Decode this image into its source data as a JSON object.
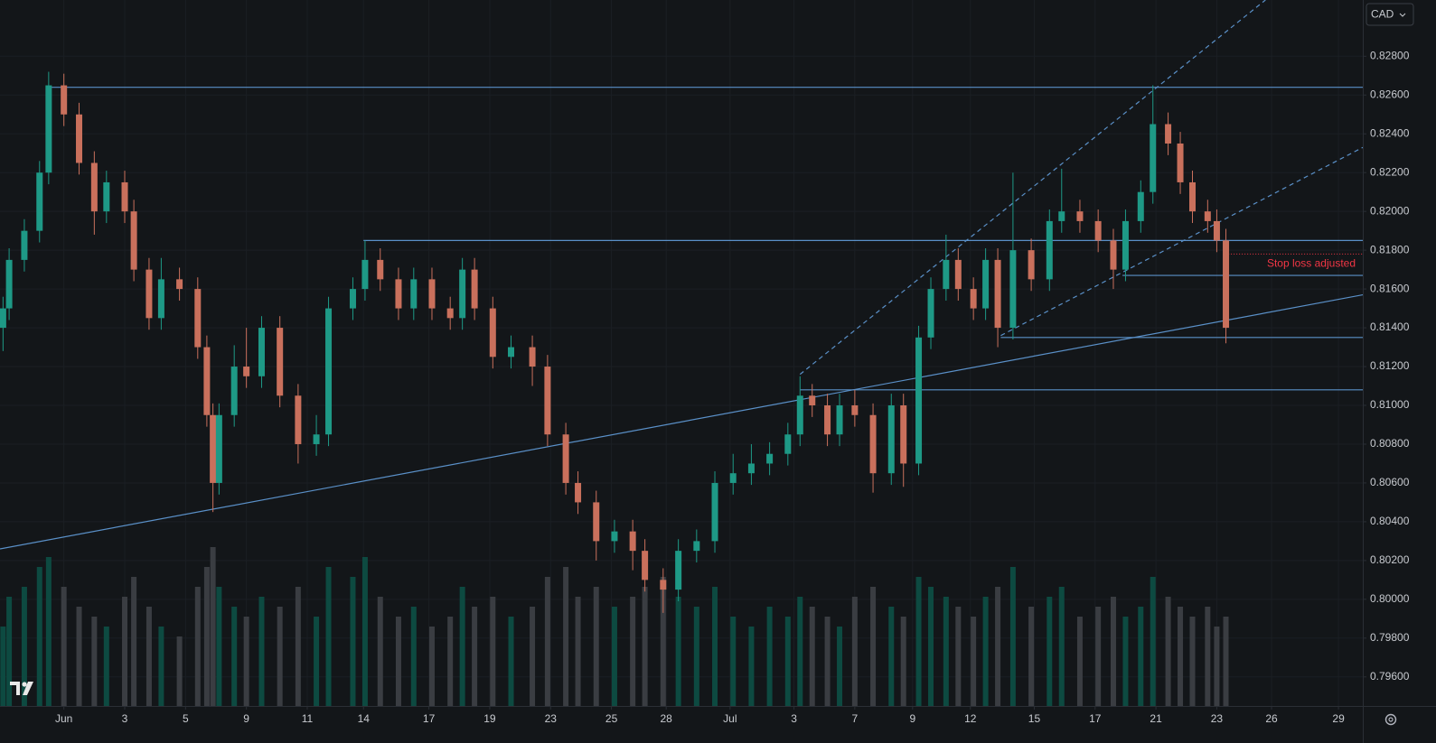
{
  "chart_data": {
    "type": "candlestick",
    "currency": "CAD",
    "annotation": "Stop loss adjusted",
    "up_color": "#1e9986",
    "down_color": "#c9705c",
    "volume_up_color": "#0d4a41",
    "volume_down_color": "#3a3d42",
    "line_color": "#5a90c8",
    "annotation_color": "#f23645",
    "xlim": [
      -2.1,
      42.7
    ],
    "ylim": [
      0.7945,
      0.8309
    ],
    "volume_lim": [
      0,
      200
    ],
    "xticks": [
      {
        "value": 0,
        "label": "Jun"
      },
      {
        "value": 2,
        "label": "3"
      },
      {
        "value": 4,
        "label": "5"
      },
      {
        "value": 6,
        "label": "9"
      },
      {
        "value": 8,
        "label": "11"
      },
      {
        "value": 9.85,
        "label": "14"
      },
      {
        "value": 12,
        "label": "17"
      },
      {
        "value": 14,
        "label": "19"
      },
      {
        "value": 16,
        "label": "23"
      },
      {
        "value": 18,
        "label": "25"
      },
      {
        "value": 19.8,
        "label": "28"
      },
      {
        "value": 21.9,
        "label": "Jul"
      },
      {
        "value": 24,
        "label": "3"
      },
      {
        "value": 26,
        "label": "7"
      },
      {
        "value": 27.9,
        "label": "9"
      },
      {
        "value": 29.8,
        "label": "12"
      },
      {
        "value": 31.9,
        "label": "15"
      },
      {
        "value": 33.9,
        "label": "17"
      },
      {
        "value": 35.9,
        "label": "21"
      },
      {
        "value": 37.9,
        "label": "23"
      },
      {
        "value": 39.7,
        "label": "26"
      },
      {
        "value": 41.9,
        "label": "29"
      }
    ],
    "yticks": [
      {
        "value": 0.796,
        "label": "0.79600"
      },
      {
        "value": 0.798,
        "label": "0.79800"
      },
      {
        "value": 0.8,
        "label": "0.80000"
      },
      {
        "value": 0.802,
        "label": "0.80200"
      },
      {
        "value": 0.804,
        "label": "0.80400"
      },
      {
        "value": 0.806,
        "label": "0.80600"
      },
      {
        "value": 0.808,
        "label": "0.80800"
      },
      {
        "value": 0.81,
        "label": "0.81000"
      },
      {
        "value": 0.812,
        "label": "0.81200"
      },
      {
        "value": 0.814,
        "label": "0.81400"
      },
      {
        "value": 0.816,
        "label": "0.81600"
      },
      {
        "value": 0.818,
        "label": "0.81800"
      },
      {
        "value": 0.82,
        "label": "0.82000"
      },
      {
        "value": 0.822,
        "label": "0.82200"
      },
      {
        "value": 0.824,
        "label": "0.82400"
      },
      {
        "value": 0.826,
        "label": "0.82600"
      },
      {
        "value": 0.828,
        "label": "0.82800"
      }
    ],
    "grid": true,
    "x": [
      -2.0,
      -1.8,
      -1.3,
      -0.8,
      -0.5,
      0,
      0.5,
      1.0,
      1.4,
      2.0,
      2.3,
      2.8,
      3.2,
      3.8,
      4.4,
      4.7,
      4.9,
      5.1,
      5.6,
      6.0,
      6.5,
      7.1,
      7.7,
      8.3,
      8.7,
      9.5,
      9.9,
      10.4,
      11.0,
      11.5,
      12.1,
      12.7,
      13.1,
      13.5,
      14.1,
      14.7,
      15.4,
      15.9,
      16.5,
      16.9,
      17.5,
      18.1,
      18.7,
      19.1,
      19.7,
      20.2,
      20.8,
      21.4,
      22.0,
      22.6,
      23.2,
      23.8,
      24.2,
      24.6,
      25.1,
      25.5,
      26.0,
      26.6,
      27.2,
      27.6,
      28.1,
      28.5,
      29.0,
      29.4,
      29.9,
      30.3,
      30.7,
      31.2,
      31.8,
      32.4,
      32.8,
      33.4,
      34.0,
      34.5,
      34.9,
      35.4,
      35.8,
      36.3,
      36.7,
      37.1,
      37.6,
      37.9,
      38.2
    ],
    "open": [
      0.814,
      0.815,
      0.8175,
      0.819,
      0.822,
      0.8265,
      0.825,
      0.8225,
      0.82,
      0.8215,
      0.82,
      0.817,
      0.8145,
      0.8165,
      0.816,
      0.813,
      0.8095,
      0.806,
      0.8095,
      0.812,
      0.8115,
      0.814,
      0.8105,
      0.808,
      0.8085,
      0.815,
      0.816,
      0.8175,
      0.8165,
      0.815,
      0.8165,
      0.815,
      0.8145,
      0.817,
      0.815,
      0.8125,
      0.813,
      0.812,
      0.8085,
      0.806,
      0.805,
      0.803,
      0.8035,
      0.8025,
      0.801,
      0.8005,
      0.8025,
      0.803,
      0.806,
      0.8065,
      0.807,
      0.8075,
      0.8085,
      0.8105,
      0.81,
      0.8085,
      0.81,
      0.8095,
      0.8065,
      0.81,
      0.807,
      0.8135,
      0.816,
      0.8175,
      0.816,
      0.815,
      0.8175,
      0.814,
      0.818,
      0.8165,
      0.8195,
      0.82,
      0.8195,
      0.8185,
      0.817,
      0.8195,
      0.821,
      0.8245,
      0.8235,
      0.8215,
      0.82,
      0.8195,
      0.8185
    ],
    "high": [
      0.8156,
      0.8181,
      0.8196,
      0.8226,
      0.8272,
      0.8271,
      0.8256,
      0.8231,
      0.8221,
      0.8221,
      0.8206,
      0.8176,
      0.8176,
      0.8171,
      0.8166,
      0.8136,
      0.8101,
      0.8101,
      0.8131,
      0.814,
      0.8146,
      0.8146,
      0.8111,
      0.8095,
      0.8156,
      0.8166,
      0.8185,
      0.8181,
      0.8171,
      0.8171,
      0.8171,
      0.8156,
      0.8176,
      0.8176,
      0.8156,
      0.8136,
      0.8136,
      0.8126,
      0.8091,
      0.8066,
      0.8056,
      0.8041,
      0.8041,
      0.8031,
      0.8016,
      0.8031,
      0.8036,
      0.8066,
      0.8075,
      0.808,
      0.8081,
      0.8091,
      0.8115,
      0.8111,
      0.8106,
      0.8106,
      0.8108,
      0.8101,
      0.8106,
      0.8106,
      0.8141,
      0.8166,
      0.8188,
      0.8181,
      0.8166,
      0.8181,
      0.8181,
      0.822,
      0.8186,
      0.8201,
      0.8222,
      0.8206,
      0.8201,
      0.8191,
      0.8201,
      0.8216,
      0.8265,
      0.8251,
      0.8241,
      0.8221,
      0.8206,
      0.8201,
      0.8191
    ],
    "low": [
      0.8128,
      0.8144,
      0.8169,
      0.8184,
      0.8214,
      0.8244,
      0.8219,
      0.8188,
      0.8194,
      0.8194,
      0.8164,
      0.8139,
      0.8139,
      0.8154,
      0.8124,
      0.8089,
      0.8045,
      0.8054,
      0.8089,
      0.8109,
      0.8109,
      0.8099,
      0.807,
      0.8074,
      0.8079,
      0.8144,
      0.8154,
      0.8159,
      0.8144,
      0.8144,
      0.8144,
      0.8139,
      0.8139,
      0.8144,
      0.8119,
      0.8119,
      0.811,
      0.8079,
      0.8054,
      0.8044,
      0.802,
      0.8024,
      0.8015,
      0.8004,
      0.7993,
      0.7999,
      0.8019,
      0.8024,
      0.8054,
      0.8059,
      0.8064,
      0.8069,
      0.8079,
      0.8094,
      0.8079,
      0.8079,
      0.8089,
      0.8055,
      0.8059,
      0.8058,
      0.8064,
      0.8129,
      0.8154,
      0.8154,
      0.8144,
      0.8144,
      0.813,
      0.8134,
      0.8159,
      0.8159,
      0.8189,
      0.8189,
      0.8179,
      0.816,
      0.8164,
      0.8189,
      0.8204,
      0.8229,
      0.8209,
      0.8194,
      0.8189,
      0.8179,
      0.8132
    ],
    "close": [
      0.815,
      0.8175,
      0.819,
      0.822,
      0.8265,
      0.825,
      0.8225,
      0.82,
      0.8215,
      0.82,
      0.817,
      0.8145,
      0.8165,
      0.816,
      0.813,
      0.8095,
      0.806,
      0.8095,
      0.812,
      0.8115,
      0.814,
      0.8105,
      0.808,
      0.8085,
      0.815,
      0.816,
      0.8175,
      0.8165,
      0.815,
      0.8165,
      0.815,
      0.8145,
      0.817,
      0.815,
      0.8125,
      0.813,
      0.812,
      0.8085,
      0.806,
      0.805,
      0.803,
      0.8035,
      0.8025,
      0.801,
      0.8005,
      0.8025,
      0.803,
      0.806,
      0.8065,
      0.807,
      0.8075,
      0.8085,
      0.8105,
      0.81,
      0.8085,
      0.81,
      0.8095,
      0.8065,
      0.81,
      0.807,
      0.8135,
      0.816,
      0.8175,
      0.816,
      0.815,
      0.8175,
      0.814,
      0.818,
      0.8165,
      0.8195,
      0.82,
      0.8195,
      0.8185,
      0.817,
      0.8195,
      0.821,
      0.8245,
      0.8235,
      0.8215,
      0.82,
      0.8195,
      0.8185,
      0.814
    ],
    "volume": [
      80,
      110,
      120,
      140,
      150,
      120,
      100,
      90,
      80,
      110,
      130,
      100,
      80,
      70,
      120,
      140,
      160,
      120,
      100,
      90,
      110,
      100,
      120,
      90,
      140,
      130,
      150,
      110,
      90,
      100,
      80,
      90,
      120,
      100,
      110,
      90,
      100,
      130,
      140,
      110,
      120,
      100,
      110,
      120,
      130,
      110,
      100,
      120,
      90,
      80,
      100,
      90,
      110,
      100,
      90,
      80,
      110,
      120,
      100,
      90,
      130,
      120,
      110,
      100,
      90,
      110,
      120,
      140,
      100,
      110,
      120,
      90,
      100,
      110,
      90,
      100,
      130,
      110,
      100,
      90,
      100,
      80,
      90
    ],
    "lines": [
      {
        "x": [
          -0.5,
          42.7
        ],
        "y": [
          0.8264,
          0.8264
        ],
        "dashed": false
      },
      {
        "x": [
          9.85,
          42.7
        ],
        "y": [
          0.8185,
          0.8185
        ],
        "dashed": false
      },
      {
        "x": [
          34.8,
          42.7
        ],
        "y": [
          0.8167,
          0.8167
        ],
        "dashed": false
      },
      {
        "x": [
          30.8,
          42.7
        ],
        "y": [
          0.8135,
          0.8135
        ],
        "dashed": false
      },
      {
        "x": [
          24.2,
          42.7
        ],
        "y": [
          0.8108,
          0.8108
        ],
        "dashed": false
      },
      {
        "x": [
          -2.1,
          42.7
        ],
        "y": [
          0.8026,
          0.8157
        ],
        "dashed": false
      },
      {
        "x": [
          24.2,
          39.5
        ],
        "y": [
          0.8116,
          0.8309
        ],
        "dashed": true
      },
      {
        "x": [
          30.8,
          42.7
        ],
        "y": [
          0.8136,
          0.8233
        ],
        "dashed": true
      }
    ],
    "stop_line": {
      "x": [
        38.1,
        42.7
      ],
      "y": [
        0.8178,
        0.8178
      ]
    }
  }
}
